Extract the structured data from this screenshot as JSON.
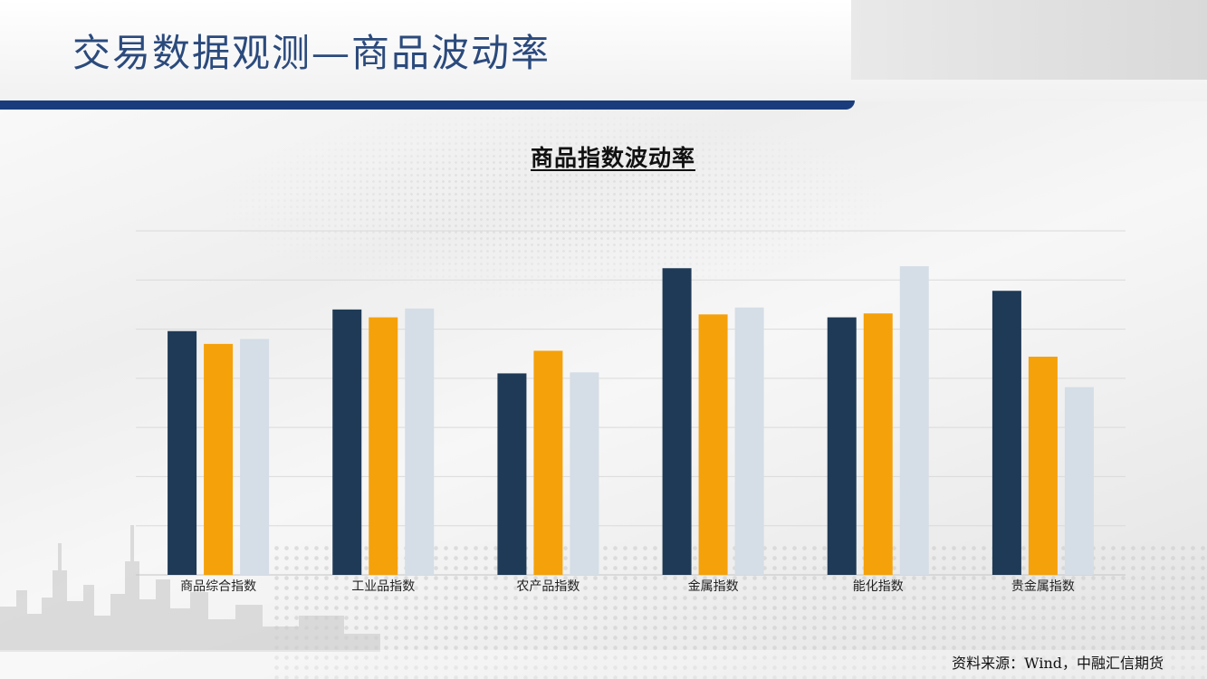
{
  "page": {
    "title": "交易数据观测—商品波动率",
    "source": "资料来源：Wind，中融汇信期货"
  },
  "colors": {
    "title_text": "#2b4a7c",
    "title_rule": "#1a3c7c",
    "series": [
      "#1f3a56",
      "#f5a10a",
      "#d5dde6"
    ]
  },
  "chart_data": {
    "type": "bar",
    "title": "商品指数波动率",
    "xlabel": "",
    "ylabel": "",
    "categories": [
      "商品综合指数",
      "工业品指数",
      "农产品指数",
      "金属指数",
      "能化指数",
      "贵金属指数"
    ],
    "series": [
      {
        "values": [
          0.248,
          0.27,
          0.205,
          0.312,
          0.262,
          0.289
        ]
      },
      {
        "values": [
          0.235,
          0.262,
          0.228,
          0.265,
          0.266,
          0.222
        ]
      },
      {
        "values": [
          0.24,
          0.271,
          0.206,
          0.272,
          0.314,
          0.191
        ]
      }
    ],
    "ylim": [
      0,
      0.35
    ],
    "grid": true,
    "legend": "none"
  }
}
